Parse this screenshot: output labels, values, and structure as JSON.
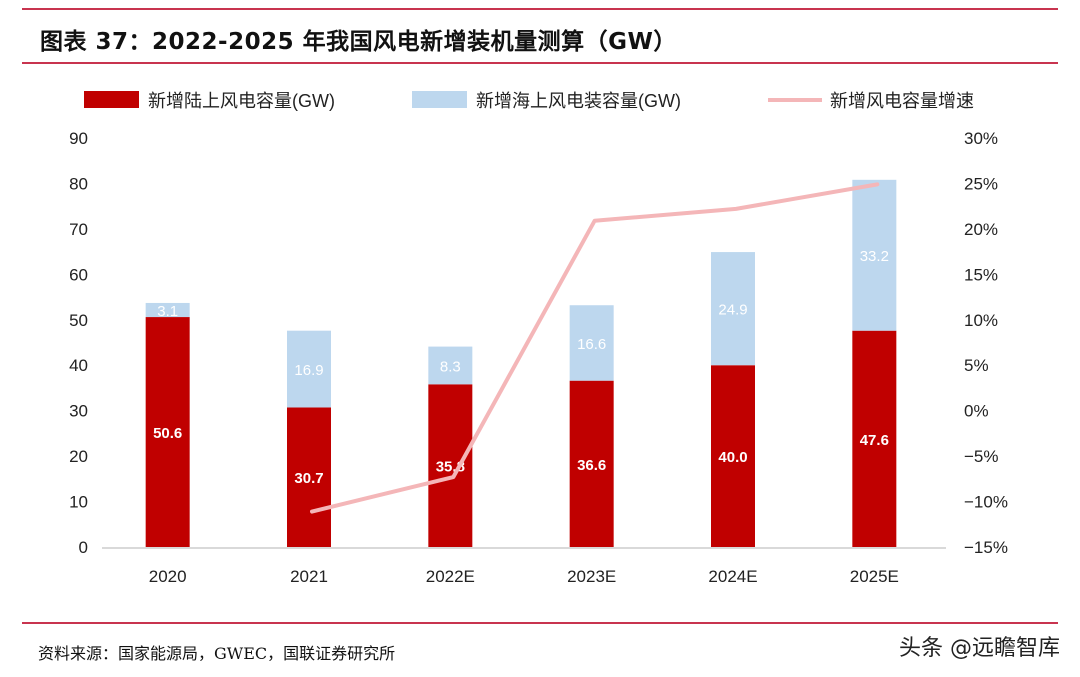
{
  "title": "图表 37：2022-2025 年我国风电新增装机量测算（GW）",
  "source": "资料来源：国家能源局，GWEC，国联证券研究所",
  "watermark": "头条 @远瞻智库",
  "chart_data": {
    "type": "bar",
    "stacked": true,
    "title": "图表 37：2022-2025 年我国风电新增装机量测算（GW）",
    "categories": [
      "2020",
      "2021",
      "2022E",
      "2023E",
      "2024E",
      "2025E"
    ],
    "series": [
      {
        "name": "新增陆上风电容量(GW)",
        "type": "bar",
        "axis": "left",
        "color": "#c00000",
        "values": [
          50.6,
          30.7,
          35.8,
          36.6,
          40.0,
          47.6
        ],
        "labels": [
          "50.6",
          "30.7",
          "35.8",
          "36.6",
          "40.0",
          "47.6"
        ]
      },
      {
        "name": "新增海上风电装容量(GW)",
        "type": "bar",
        "axis": "left",
        "color": "#bdd7ee",
        "values": [
          3.1,
          16.9,
          8.3,
          16.6,
          24.9,
          33.2
        ],
        "labels": [
          "3.1",
          "16.9",
          "8.3",
          "16.6",
          "24.9",
          "33.2"
        ]
      },
      {
        "name": "新增风电容量增速",
        "type": "line",
        "axis": "right",
        "color": "#f4b6b8",
        "values": [
          null,
          -11.1,
          -7.3,
          20.9,
          22.2,
          24.9
        ]
      }
    ],
    "y_left": {
      "min": 0,
      "max": 90,
      "step": 10,
      "ticks": [
        "0",
        "10",
        "20",
        "30",
        "40",
        "50",
        "60",
        "70",
        "80",
        "90"
      ]
    },
    "y_right": {
      "min": -15,
      "max": 30,
      "step": 5,
      "unit": "%",
      "ticks": [
        "-15%",
        "-10%",
        "-5%",
        "0%",
        "5%",
        "10%",
        "15%",
        "20%",
        "25%",
        "30%"
      ]
    },
    "xlabel": "",
    "ylabel": "",
    "grid": false,
    "legend": "top"
  }
}
